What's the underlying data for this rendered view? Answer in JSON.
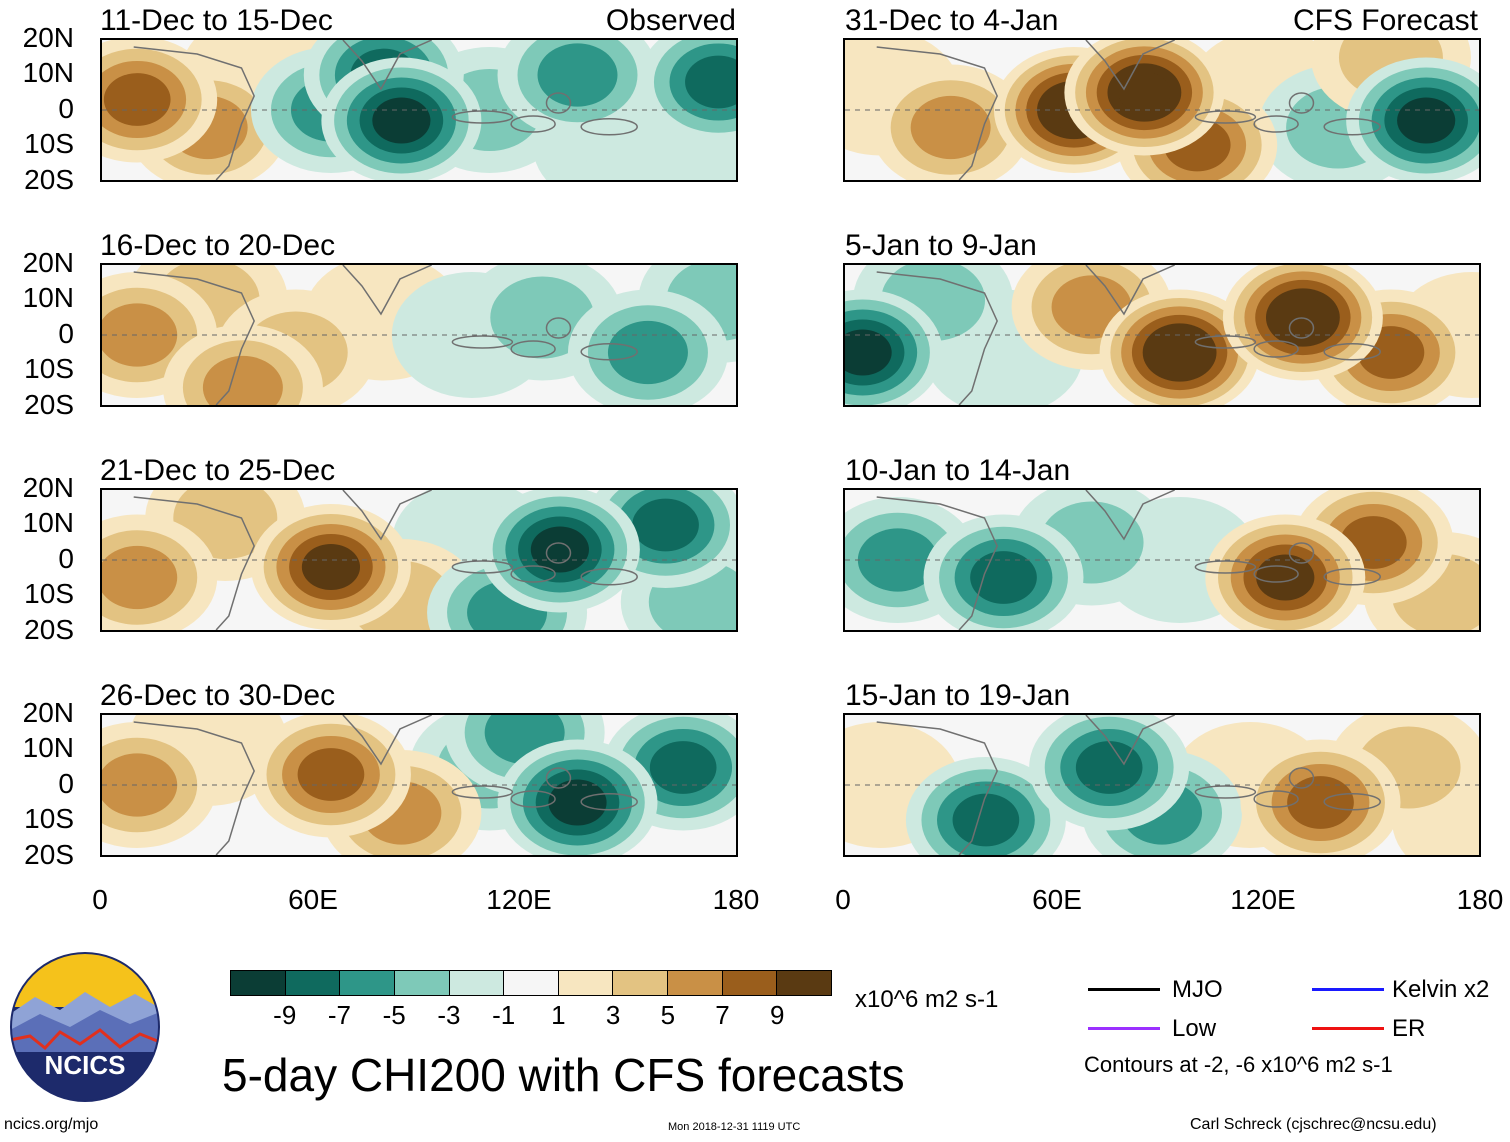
{
  "panels": [
    {
      "title": "11-Dec to 15-Dec",
      "source": "Observed"
    },
    {
      "title": "16-Dec to 20-Dec",
      "source": ""
    },
    {
      "title": "21-Dec to 25-Dec",
      "source": ""
    },
    {
      "title": "26-Dec to 30-Dec",
      "source": ""
    },
    {
      "title": "31-Dec to 4-Jan",
      "source": "CFS Forecast"
    },
    {
      "title": "5-Jan to 9-Jan",
      "source": ""
    },
    {
      "title": "10-Jan to 14-Jan",
      "source": ""
    },
    {
      "title": "15-Jan to 19-Jan",
      "source": ""
    }
  ],
  "lat_labels": [
    "20N",
    "10N",
    "0",
    "10S",
    "20S"
  ],
  "lon_labels": [
    "0",
    "60E",
    "120E",
    "180"
  ],
  "colorbar": {
    "ticks": [
      "-9",
      "-7",
      "-5",
      "-3",
      "-1",
      "1",
      "3",
      "5",
      "7",
      "9"
    ],
    "colors": [
      "#0b3d35",
      "#0f6a5e",
      "#2e9688",
      "#7ec9b8",
      "#cde9e0",
      "#f6f6f6",
      "#f7e6c0",
      "#e3c382",
      "#c99046",
      "#9a5e1c",
      "#5a3a12"
    ],
    "units": "x10^6 m2 s-1"
  },
  "main_title": "5-day CHI200 with CFS forecasts",
  "legend": {
    "items": [
      {
        "label": "MJO",
        "color": "#000000"
      },
      {
        "label": "Kelvin x2",
        "color": "#1a1aff"
      },
      {
        "label": "Low",
        "color": "#9b30ff"
      },
      {
        "label": "ER",
        "color": "#ee1111"
      }
    ],
    "note": "Contours at -2, -6 x10^6 m2 s-1"
  },
  "footer": {
    "website": "ncics.org/mjo",
    "timestamp": "Mon 2018-12-31 1119 UTC",
    "author": "Carl Schreck (cjschrec@ncsu.edu)"
  },
  "logo_text": "NCICS",
  "panel_fields": [
    [
      {
        "lon": 10,
        "lat": 3,
        "v": 7
      },
      {
        "lon": 30,
        "lat": -5,
        "v": 5
      },
      {
        "lon": 45,
        "lat": 10,
        "v": 2
      },
      {
        "lon": 65,
        "lat": 0,
        "v": -5
      },
      {
        "lon": 85,
        "lat": -3,
        "v": -9
      },
      {
        "lon": 80,
        "lat": 10,
        "v": -7
      },
      {
        "lon": 110,
        "lat": 0,
        "v": -3
      },
      {
        "lon": 135,
        "lat": 10,
        "v": -5
      },
      {
        "lon": 145,
        "lat": -10,
        "v": -1
      },
      {
        "lon": 175,
        "lat": 8,
        "v": -7
      },
      {
        "lon": 160,
        "lat": -12,
        "v": -2
      }
    ],
    [
      {
        "lon": 10,
        "lat": 0,
        "v": 5
      },
      {
        "lon": 30,
        "lat": 10,
        "v": 3
      },
      {
        "lon": 55,
        "lat": -5,
        "v": 3
      },
      {
        "lon": 80,
        "lat": 5,
        "v": 1
      },
      {
        "lon": 105,
        "lat": 0,
        "v": -1
      },
      {
        "lon": 125,
        "lat": 5,
        "v": -3
      },
      {
        "lon": 155,
        "lat": -5,
        "v": -5
      },
      {
        "lon": 175,
        "lat": 10,
        "v": -3
      },
      {
        "lon": 40,
        "lat": -15,
        "v": 5
      }
    ],
    [
      {
        "lon": 10,
        "lat": -5,
        "v": 5
      },
      {
        "lon": 35,
        "lat": 12,
        "v": 3
      },
      {
        "lon": 65,
        "lat": -2,
        "v": 9
      },
      {
        "lon": 85,
        "lat": -12,
        "v": 3
      },
      {
        "lon": 105,
        "lat": 5,
        "v": -1
      },
      {
        "lon": 130,
        "lat": 3,
        "v": -9
      },
      {
        "lon": 160,
        "lat": 10,
        "v": -7
      },
      {
        "lon": 170,
        "lat": -12,
        "v": -3
      },
      {
        "lon": 115,
        "lat": -15,
        "v": -5
      }
    ],
    [
      {
        "lon": 10,
        "lat": 0,
        "v": 5
      },
      {
        "lon": 30,
        "lat": 12,
        "v": 1
      },
      {
        "lon": 65,
        "lat": 3,
        "v": 7
      },
      {
        "lon": 85,
        "lat": -8,
        "v": 5
      },
      {
        "lon": 110,
        "lat": 5,
        "v": -3
      },
      {
        "lon": 135,
        "lat": -5,
        "v": -9
      },
      {
        "lon": 165,
        "lat": 5,
        "v": -7
      },
      {
        "lon": 120,
        "lat": 15,
        "v": -5
      }
    ],
    [
      {
        "lon": 10,
        "lat": 5,
        "v": 1
      },
      {
        "lon": 30,
        "lat": -5,
        "v": 5
      },
      {
        "lon": 65,
        "lat": 0,
        "v": 11
      },
      {
        "lon": 85,
        "lat": 5,
        "v": 11
      },
      {
        "lon": 100,
        "lat": -10,
        "v": 7
      },
      {
        "lon": 120,
        "lat": 5,
        "v": 1
      },
      {
        "lon": 140,
        "lat": -5,
        "v": -3
      },
      {
        "lon": 165,
        "lat": -3,
        "v": -9
      },
      {
        "lon": 155,
        "lat": 15,
        "v": 3
      }
    ],
    [
      {
        "lon": 5,
        "lat": -5,
        "v": -9
      },
      {
        "lon": 25,
        "lat": 10,
        "v": -3
      },
      {
        "lon": 45,
        "lat": -5,
        "v": -1
      },
      {
        "lon": 70,
        "lat": 8,
        "v": 5
      },
      {
        "lon": 95,
        "lat": -5,
        "v": 11
      },
      {
        "lon": 130,
        "lat": 5,
        "v": 11
      },
      {
        "lon": 155,
        "lat": -5,
        "v": 7
      },
      {
        "lon": 178,
        "lat": 0,
        "v": 1
      }
    ],
    [
      {
        "lon": 15,
        "lat": 0,
        "v": -5
      },
      {
        "lon": 45,
        "lat": -5,
        "v": -7
      },
      {
        "lon": 70,
        "lat": 5,
        "v": -3
      },
      {
        "lon": 95,
        "lat": 0,
        "v": -1
      },
      {
        "lon": 125,
        "lat": -5,
        "v": 9
      },
      {
        "lon": 150,
        "lat": 5,
        "v": 7
      },
      {
        "lon": 170,
        "lat": -10,
        "v": 3
      }
    ],
    [
      {
        "lon": 10,
        "lat": 0,
        "v": 1
      },
      {
        "lon": 40,
        "lat": -10,
        "v": -7
      },
      {
        "lon": 75,
        "lat": 5,
        "v": -7
      },
      {
        "lon": 90,
        "lat": -8,
        "v": -5
      },
      {
        "lon": 115,
        "lat": 0,
        "v": 1
      },
      {
        "lon": 135,
        "lat": -5,
        "v": 7
      },
      {
        "lon": 160,
        "lat": 5,
        "v": 3
      },
      {
        "lon": 178,
        "lat": -10,
        "v": 1
      }
    ]
  ]
}
